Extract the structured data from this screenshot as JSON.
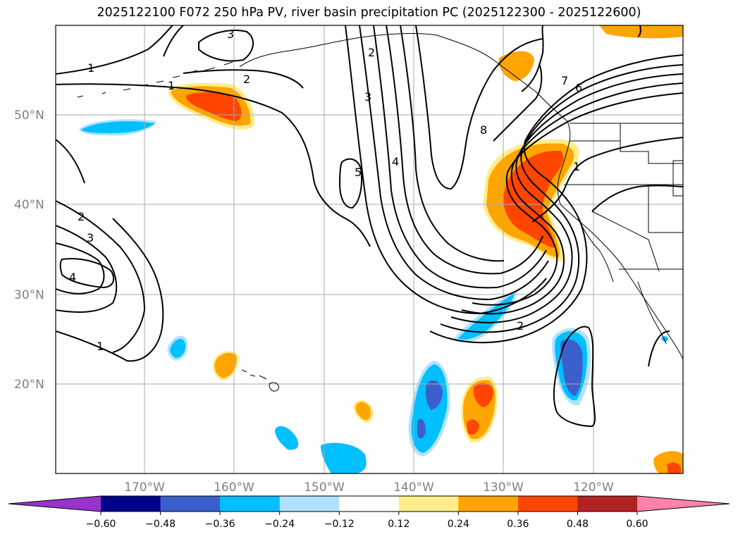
{
  "title": "2025122100 F072 250 hPa PV, river basin precipitation PC (2025122300 - 2025122600)",
  "lat_labels": [
    "50°N",
    "40°N",
    "30°N",
    "20°N"
  ],
  "lon_labels": [
    "170°W",
    "160°W",
    "150°W",
    "140°W",
    "130°W",
    "120°W"
  ],
  "contour_labels": [
    "1",
    "2",
    "3",
    "1",
    "2",
    "3",
    "4",
    "1",
    "2",
    "3",
    "4",
    "5",
    "6",
    "7",
    "8",
    "2",
    "1",
    "1",
    "1"
  ],
  "colorbar": {
    "ticks": [
      "−0.60",
      "−0.48",
      "−0.36",
      "−0.24",
      "−0.12",
      "0.12",
      "0.24",
      "0.36",
      "0.48",
      "0.60"
    ],
    "colors": [
      "#9a32cd",
      "#00008b",
      "#3a5fcd",
      "#00bfff",
      "#b0e2ff",
      "#ffffff",
      "#ffec8b",
      "#ffa500",
      "#ff4500",
      "#b22222",
      "#ff82ab"
    ]
  },
  "shading_colors": {
    "blue_light": "#00bfff",
    "blue_mid": "#3a5fcd",
    "blue_pale": "#b0e2ff",
    "orange": "#ffa500",
    "red_orange": "#ff4500",
    "yellow": "#ffec8b"
  }
}
